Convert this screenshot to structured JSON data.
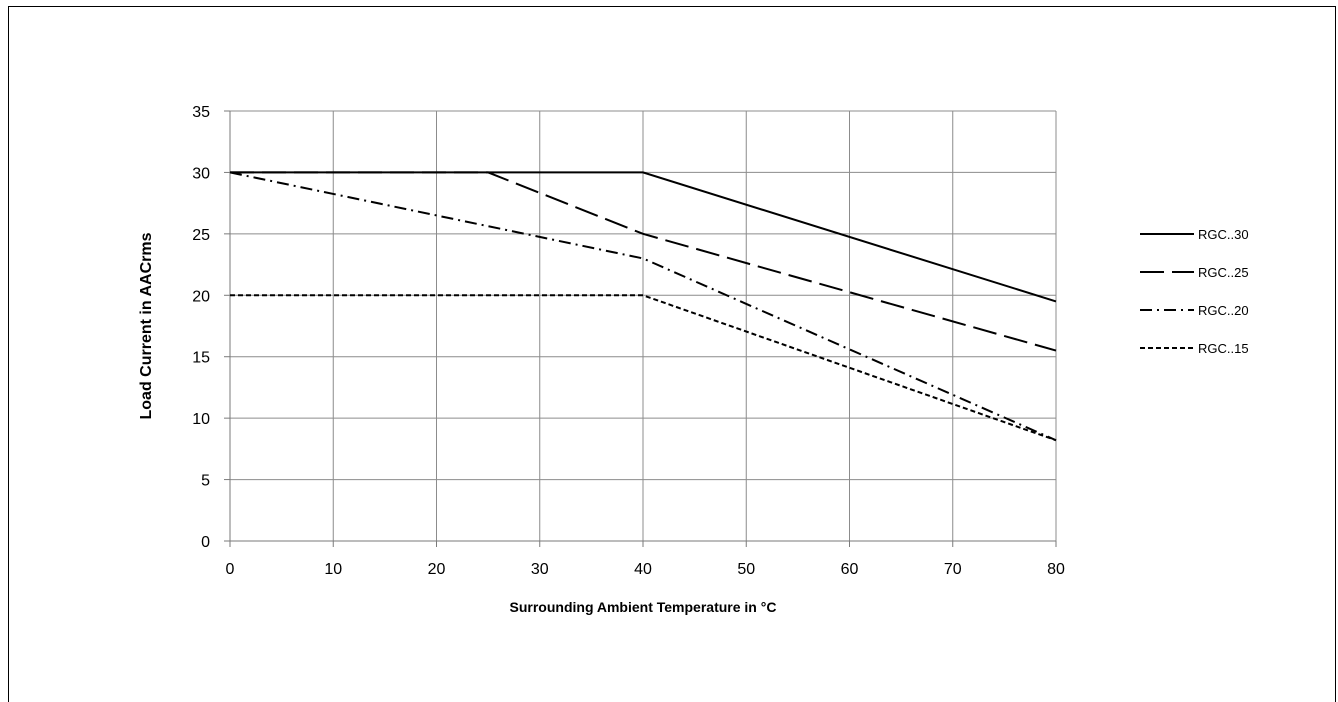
{
  "chart_data": {
    "type": "line",
    "title": "",
    "xlabel": "Surrounding Ambient Temperature in °C",
    "ylabel": "Load Current in AACrms",
    "xlim": [
      0,
      80
    ],
    "ylim": [
      0,
      35
    ],
    "x_ticks": [
      0,
      10,
      20,
      30,
      40,
      50,
      60,
      70,
      80
    ],
    "y_ticks": [
      0,
      5,
      10,
      15,
      20,
      25,
      30,
      35
    ],
    "grid": true,
    "legend_position": "right",
    "series": [
      {
        "name": "RGC..30",
        "style": "solid",
        "points": [
          [
            0,
            30
          ],
          [
            40,
            30
          ],
          [
            80,
            19.5
          ]
        ]
      },
      {
        "name": "RGC..25",
        "style": "long-dash",
        "points": [
          [
            0,
            30
          ],
          [
            25,
            30
          ],
          [
            40,
            25
          ],
          [
            80,
            15.5
          ]
        ]
      },
      {
        "name": "RGC..20",
        "style": "dash-dot",
        "points": [
          [
            0,
            30
          ],
          [
            40,
            23
          ],
          [
            80,
            8.2
          ]
        ]
      },
      {
        "name": "RGC..15",
        "style": "short-dash",
        "points": [
          [
            0,
            20
          ],
          [
            40,
            20
          ],
          [
            80,
            8.2
          ]
        ]
      }
    ]
  }
}
